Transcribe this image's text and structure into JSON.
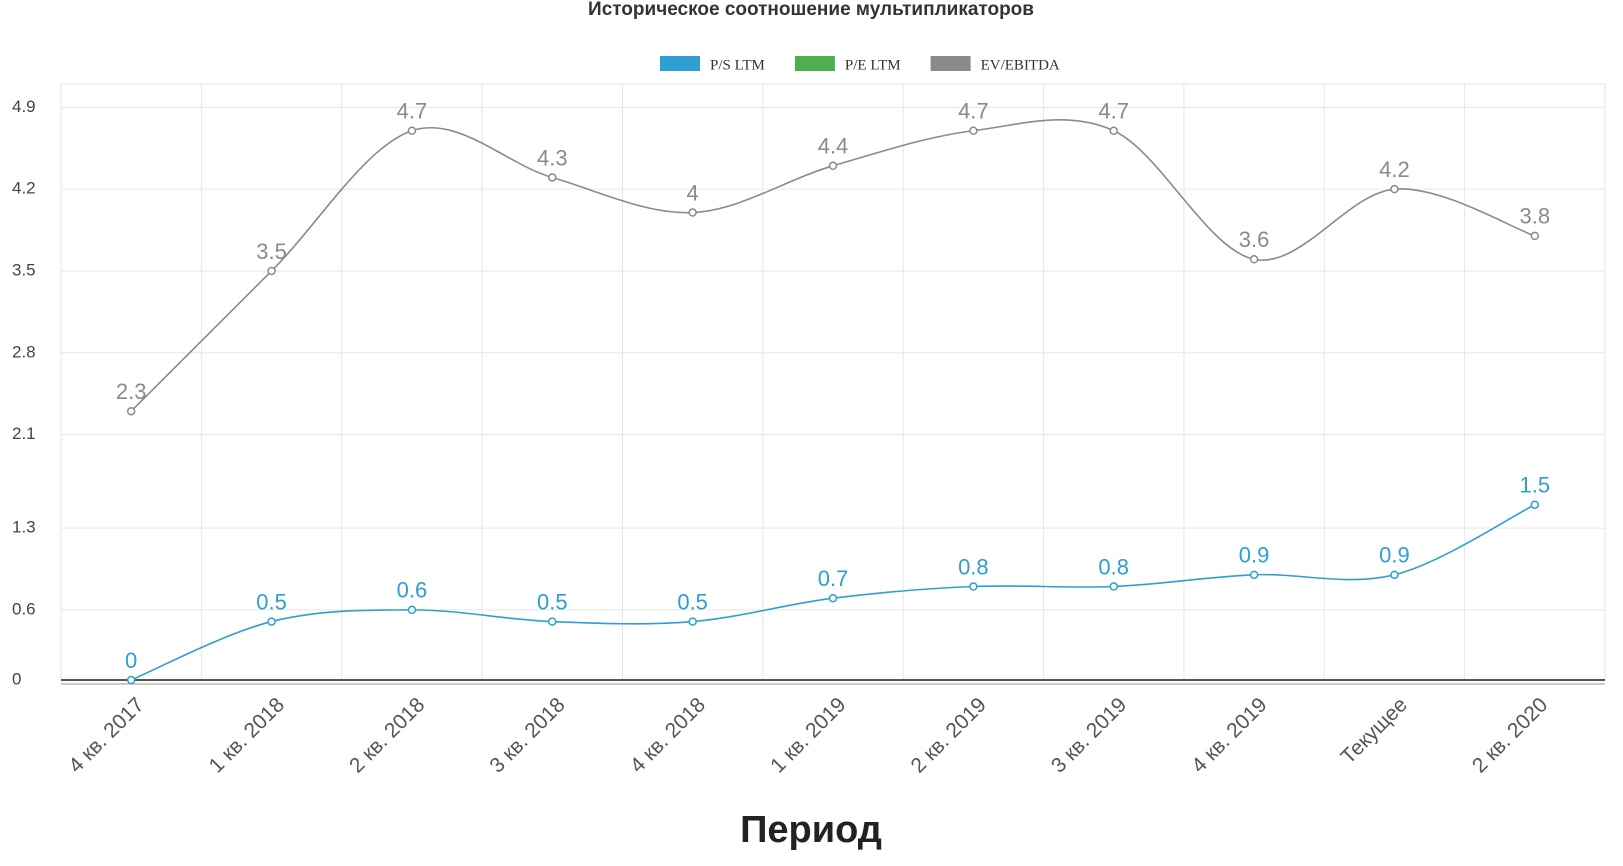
{
  "chart_data": {
    "type": "line",
    "title": "Историческое соотношение мультипликаторов",
    "x_label": "Период",
    "categories": [
      "4 кв. 2017",
      "1 кв. 2018",
      "2 кв. 2018",
      "3 кв. 2018",
      "4 кв. 2018",
      "1 кв. 2019",
      "2 кв. 2019",
      "3 кв. 2019",
      "4 кв. 2019",
      "Текущее",
      "2 кв. 2020"
    ],
    "series": [
      {
        "name": "P/S LTM",
        "color": "#2e9fd0",
        "values": [
          0,
          0.5,
          0.6,
          0.5,
          0.5,
          0.7,
          0.8,
          0.8,
          0.9,
          0.9,
          1.5
        ]
      },
      {
        "name": "P/E LTM",
        "color": "#4caf50",
        "values": [
          null,
          null,
          null,
          null,
          null,
          null,
          null,
          null,
          null,
          null,
          null
        ]
      },
      {
        "name": "EV/EBITDA",
        "color": "#8a8a8a",
        "values": [
          2.3,
          3.5,
          4.7,
          4.3,
          4,
          4.4,
          4.7,
          4.7,
          3.6,
          4.2,
          3.8
        ]
      }
    ],
    "ylim": [
      0,
      5.1
    ],
    "yticks": [
      0,
      0.6,
      1.3,
      2.1,
      2.8,
      3.5,
      4.2,
      4.9
    ],
    "grid": true,
    "legend": "top"
  }
}
